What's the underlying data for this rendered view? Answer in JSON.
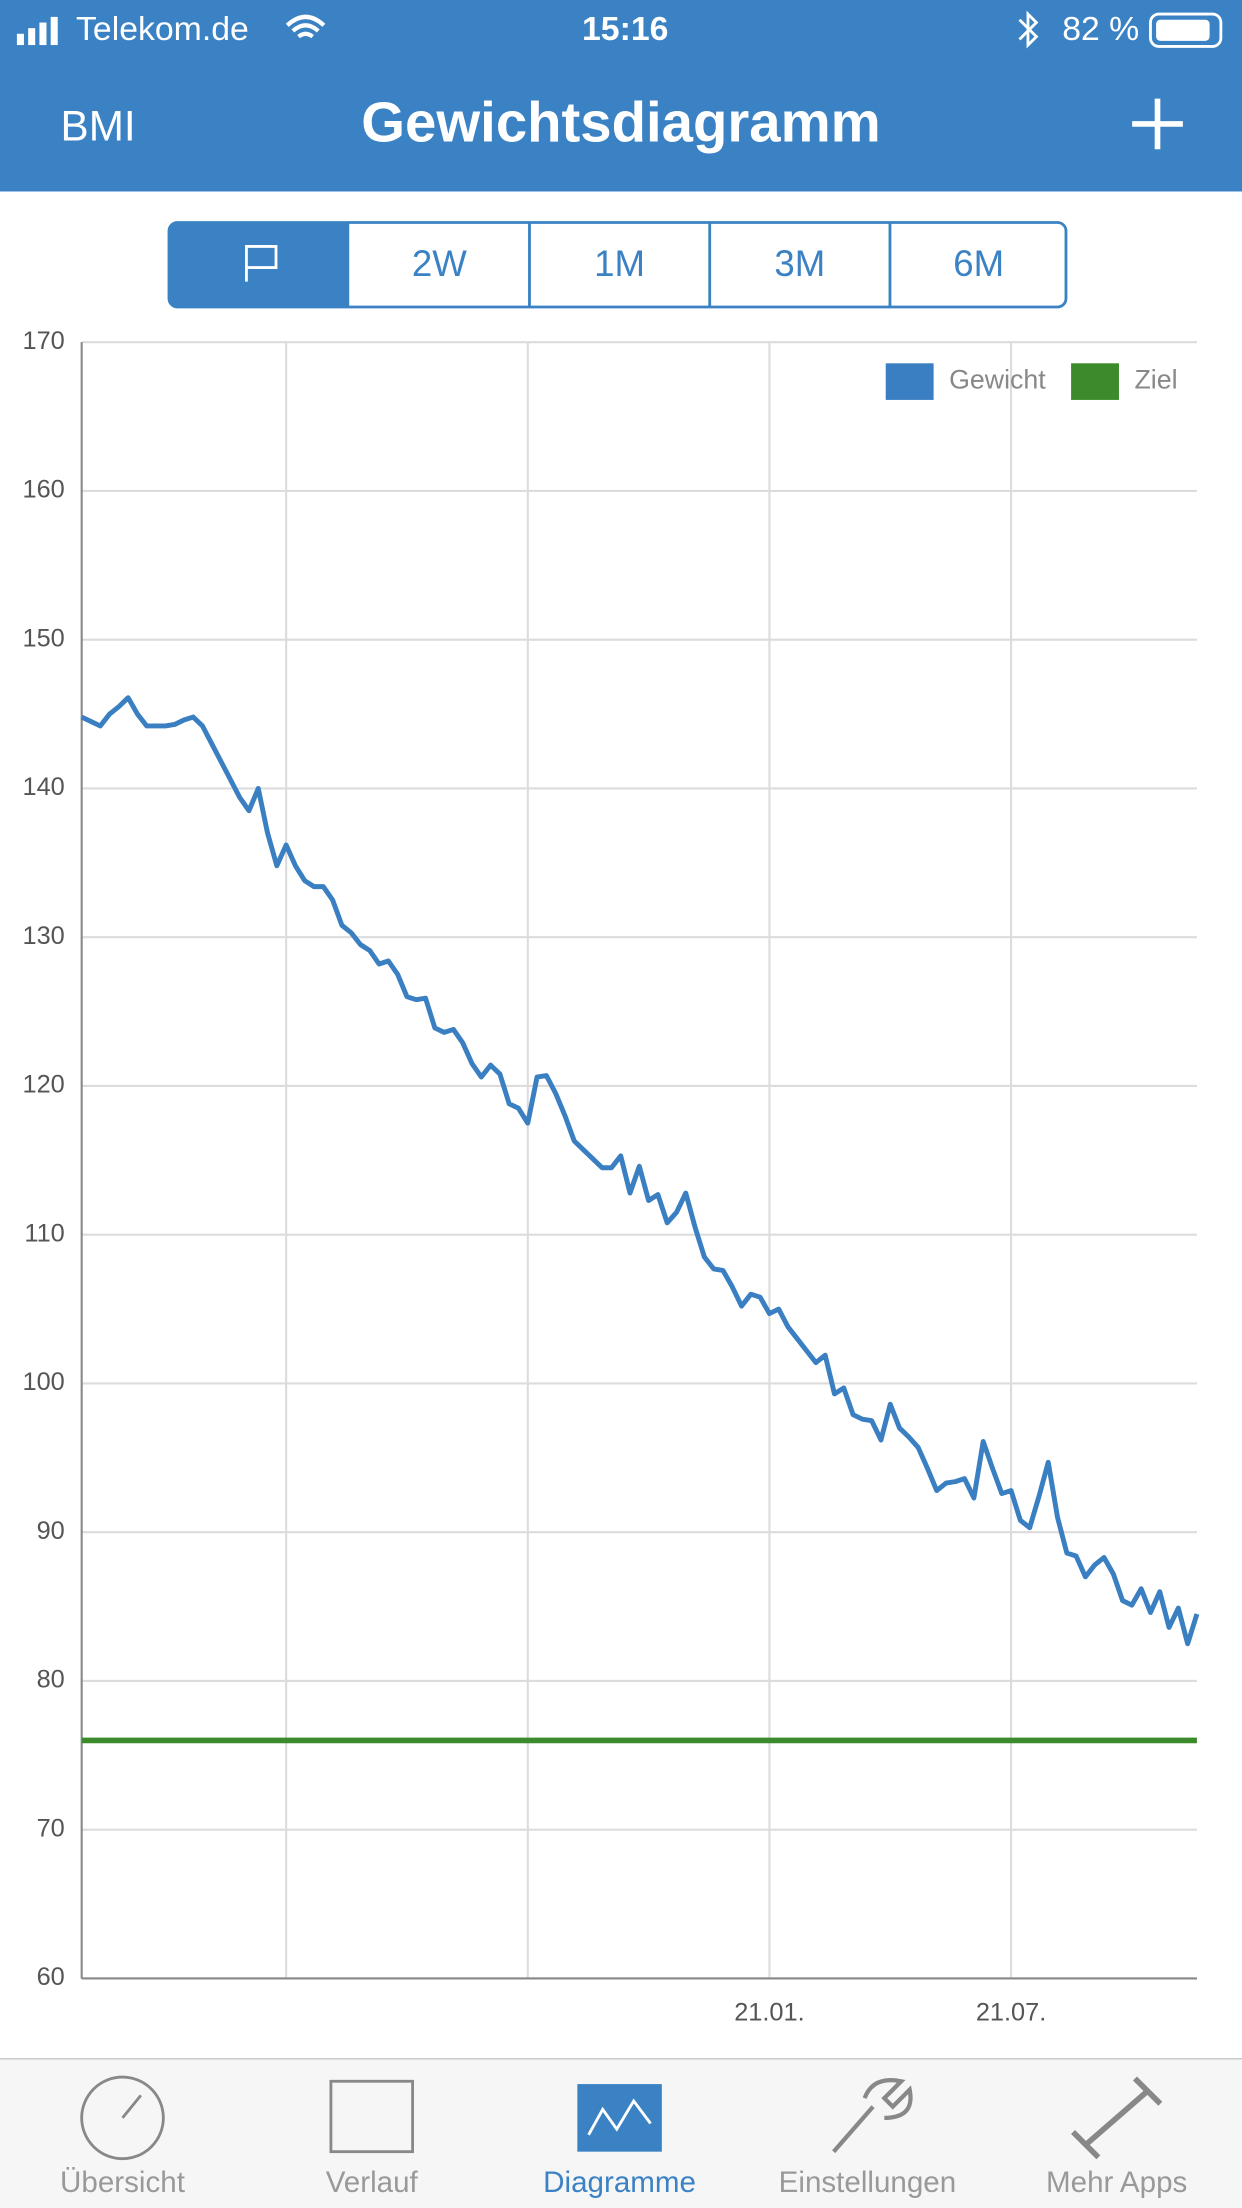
{
  "status_bar": {
    "carrier": "Telekom.de",
    "time": "15:16",
    "battery": "82 %"
  },
  "nav": {
    "left": "BMI",
    "title": "Gewichtsdiagramm"
  },
  "segments": [
    "2W",
    "1M",
    "3M",
    "6M"
  ],
  "chart_data": {
    "type": "line",
    "categories": [
      null,
      null,
      null,
      null,
      null,
      null,
      null,
      null,
      null,
      null,
      null,
      null,
      null,
      null,
      null,
      null,
      null,
      null,
      null,
      null,
      null,
      null,
      null,
      null,
      null,
      null,
      null,
      null,
      null,
      null,
      null,
      null,
      null,
      null,
      null,
      null,
      null,
      null,
      null,
      null,
      null,
      null,
      null,
      null,
      null,
      null,
      null,
      null,
      null,
      null,
      null,
      null,
      null,
      null,
      null,
      null,
      null,
      null,
      null,
      null,
      null,
      null,
      null,
      null,
      null,
      null,
      null,
      null,
      null,
      null,
      null,
      null,
      null,
      null,
      "21.01.",
      null,
      null,
      null,
      null,
      null,
      null,
      null,
      null,
      null,
      null,
      null,
      null,
      null,
      null,
      null,
      null,
      null,
      null,
      null,
      null,
      null,
      null,
      null,
      null,
      null,
      "21.07.",
      null,
      null,
      null,
      null,
      null,
      null,
      null,
      null,
      null,
      null,
      null,
      null,
      null,
      null,
      null,
      null,
      null,
      null,
      null,
      null
    ],
    "series": [
      {
        "name": "Gewicht",
        "color": "#3a7fc1",
        "values": [
          144.8,
          144.5,
          144.2,
          145,
          145.5,
          146.1,
          145,
          144.2,
          144.2,
          144.2,
          144.3,
          144.6,
          144.8,
          144.2,
          143,
          141.8,
          140.6,
          139.4,
          138.5,
          140,
          137,
          134.8,
          136.2,
          134.8,
          133.8,
          133.4,
          133.4,
          132.5,
          130.8,
          130.3,
          129.5,
          129.1,
          128.2,
          128.4,
          127.5,
          126,
          125.8,
          125.9,
          123.9,
          123.6,
          123.8,
          122.9,
          121.5,
          120.6,
          121.4,
          120.8,
          118.8,
          118.5,
          117.5,
          120.6,
          120.7,
          119.5,
          118,
          116.3,
          115.7,
          115.1,
          114.5,
          114.5,
          115.3,
          112.8,
          114.6,
          112.3,
          112.7,
          110.8,
          111.5,
          112.8,
          110.5,
          108.5,
          107.7,
          107.6,
          106.5,
          105.2,
          106,
          105.8,
          104.7,
          105,
          103.8,
          103,
          102.2,
          101.4,
          101.9,
          99.3,
          99.7,
          97.9,
          97.6,
          97.5,
          96.2,
          98.6,
          97,
          96.4,
          95.7,
          94.3,
          92.8,
          93.3,
          93.4,
          93.6,
          92.3,
          96.1,
          94.3,
          92.6,
          92.8,
          90.8,
          90.3,
          92.4,
          94.7,
          91,
          88.6,
          88.4,
          87,
          87.8,
          88.3,
          87.2,
          85.4,
          85.1,
          86.2,
          84.6,
          86,
          83.6,
          84.9,
          82.5,
          84.5
        ]
      }
    ],
    "goal": {
      "name": "Ziel",
      "color": "#3b8a2b",
      "value": 76
    },
    "ylim": [
      60,
      170
    ],
    "yticks": [
      60,
      70,
      80,
      90,
      100,
      110,
      120,
      130,
      140,
      150,
      160,
      170
    ],
    "grid": true,
    "legend": "top-right"
  },
  "tab_bar": [
    "Übersicht",
    "Verlauf",
    "Diagramme",
    "Einstellungen",
    "Mehr Apps"
  ]
}
